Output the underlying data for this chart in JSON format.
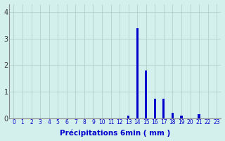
{
  "x_labels": [
    "0",
    "1",
    "2",
    "3",
    "4",
    "5",
    "6",
    "7",
    "8",
    "9",
    "10",
    "11",
    "12",
    "13",
    "14",
    "15",
    "16",
    "17",
    "18",
    "19",
    "20",
    "21",
    "22",
    "23"
  ],
  "values": [
    0,
    0,
    0,
    0,
    0,
    0,
    0,
    0,
    0,
    0,
    0,
    0,
    0,
    0.1,
    3.4,
    1.8,
    0.75,
    0.75,
    0.2,
    0.1,
    0,
    0.15,
    0,
    0
  ],
  "bar_color": "#0000cc",
  "background_color": "#d4f0ec",
  "grid_color": "#b0c8c4",
  "xlabel": "Précipitations 6min ( mm )",
  "xlabel_color": "#0000cc",
  "yticks": [
    0,
    1,
    2,
    3,
    4
  ],
  "ylim": [
    0,
    4.3
  ],
  "xlim": [
    -0.5,
    23.5
  ],
  "bar_width": 0.25,
  "figsize": [
    3.2,
    2.0
  ],
  "dpi": 100
}
